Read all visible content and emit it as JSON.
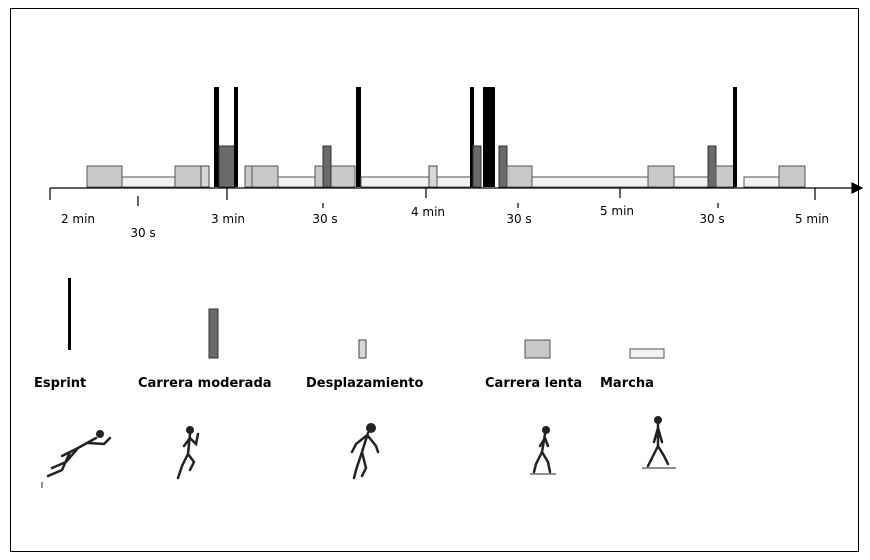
{
  "timeline": {
    "labels": [
      "2 min",
      "30 s",
      "3 min",
      "30 s",
      "4 min",
      "30 s",
      "5 min",
      "30 s",
      "5 min"
    ]
  },
  "legend": [
    {
      "label": "Esprint"
    },
    {
      "label": "Carrera moderada"
    },
    {
      "label": "Desplazamiento"
    },
    {
      "label": "Carrera lenta"
    },
    {
      "label": "Marcha"
    }
  ]
}
